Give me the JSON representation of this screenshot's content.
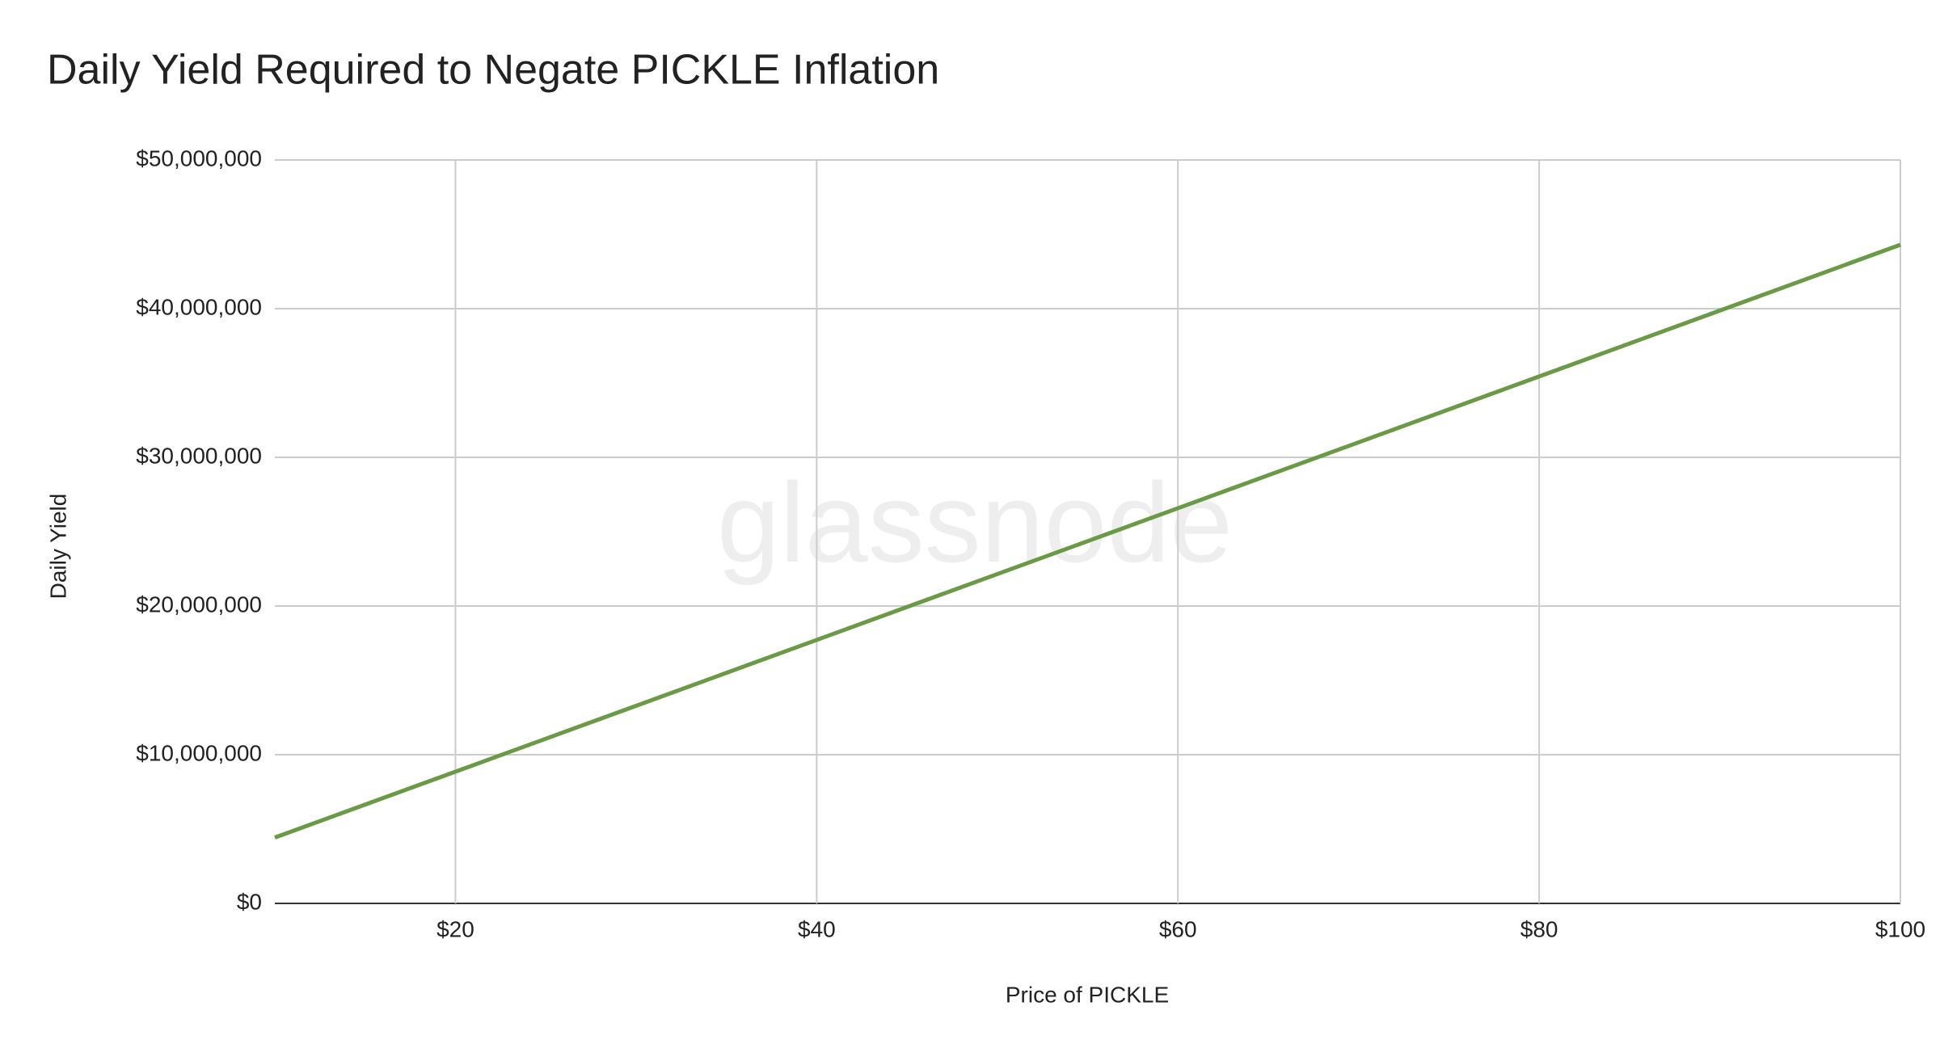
{
  "chart_data": {
    "type": "line",
    "title": "Daily Yield Required to Negate PICKLE Inflation",
    "x_label": "Price of PICKLE",
    "y_label": "Daily Yield",
    "watermark": "glassnode",
    "x": [
      10,
      20,
      30,
      40,
      50,
      60,
      70,
      80,
      90,
      100
    ],
    "values": [
      4430000,
      8860000,
      13290000,
      17720000,
      22150000,
      26580000,
      31010000,
      35440000,
      39870000,
      44300000
    ],
    "color": "#6a9a45",
    "xlim": [
      10,
      100
    ],
    "xticks": [
      {
        "value": 20,
        "label": "$20"
      },
      {
        "value": 40,
        "label": "$40"
      },
      {
        "value": 60,
        "label": "$60"
      },
      {
        "value": 80,
        "label": "$80"
      },
      {
        "value": 100,
        "label": "$100"
      }
    ],
    "ylim": [
      0,
      50000000
    ],
    "yticks": [
      {
        "value": 0,
        "label": "$0"
      },
      {
        "value": 10000000,
        "label": "$10,000,000"
      },
      {
        "value": 20000000,
        "label": "$20,000,000"
      },
      {
        "value": 30000000,
        "label": "$30,000,000"
      },
      {
        "value": 40000000,
        "label": "$40,000,000"
      },
      {
        "value": 50000000,
        "label": "$50,000,000"
      }
    ],
    "grid": true
  }
}
